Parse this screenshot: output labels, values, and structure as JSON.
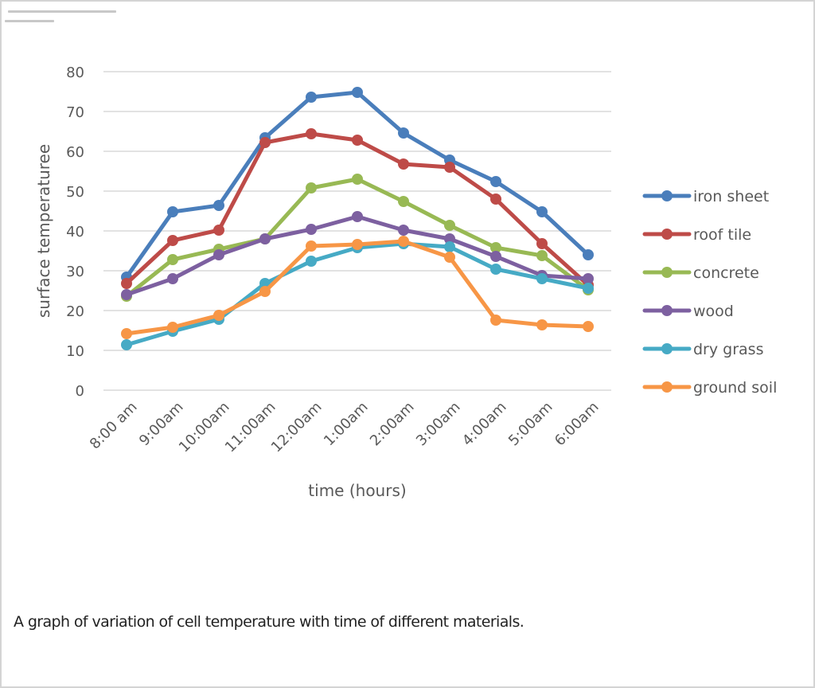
{
  "caption": "A graph of variation of cell temperature with time of different materials.",
  "chart_data": {
    "type": "line",
    "title": "",
    "xlabel": "time (hours)",
    "ylabel": "surface temperaturee",
    "ylim": [
      0,
      80
    ],
    "yticks": [
      0,
      10,
      20,
      30,
      40,
      50,
      60,
      70,
      80
    ],
    "grid": true,
    "legend_position": "right",
    "categories": [
      "8:00 am",
      "9:00am",
      "10:00am",
      "11:00am",
      "12:00am",
      "1:00am",
      "2:00am",
      "3:00am",
      "4:00am",
      "5:00am",
      "6:00am"
    ],
    "series": [
      {
        "name": "iron sheet",
        "color": "#4a7ebb",
        "values": [
          28.4,
          44.8,
          46.4,
          63.4,
          73.6,
          74.8,
          64.6,
          57.8,
          52.4,
          44.8,
          34.0
        ]
      },
      {
        "name": "roof tile",
        "color": "#be4b48",
        "values": [
          26.8,
          37.6,
          40.2,
          62.2,
          64.4,
          62.8,
          56.8,
          56.0,
          48.0,
          36.8,
          26.4
        ]
      },
      {
        "name": "concrete",
        "color": "#98b954",
        "values": [
          23.6,
          32.8,
          35.4,
          38.0,
          50.8,
          53.0,
          47.4,
          41.4,
          35.8,
          33.8,
          25.2
        ]
      },
      {
        "name": "wood",
        "color": "#7d60a0",
        "values": [
          24.0,
          28.0,
          34.0,
          38.0,
          40.4,
          43.6,
          40.2,
          38.0,
          33.6,
          28.8,
          28.0
        ]
      },
      {
        "name": "dry grass",
        "color": "#46aac5",
        "values": [
          11.4,
          14.8,
          17.8,
          26.8,
          32.4,
          35.8,
          36.8,
          36.0,
          30.4,
          28.0,
          25.6
        ]
      },
      {
        "name": "ground soil",
        "color": "#f79646",
        "values": [
          14.2,
          15.8,
          18.8,
          24.8,
          36.2,
          36.6,
          37.4,
          33.4,
          17.6,
          16.4,
          16.0
        ]
      }
    ]
  }
}
